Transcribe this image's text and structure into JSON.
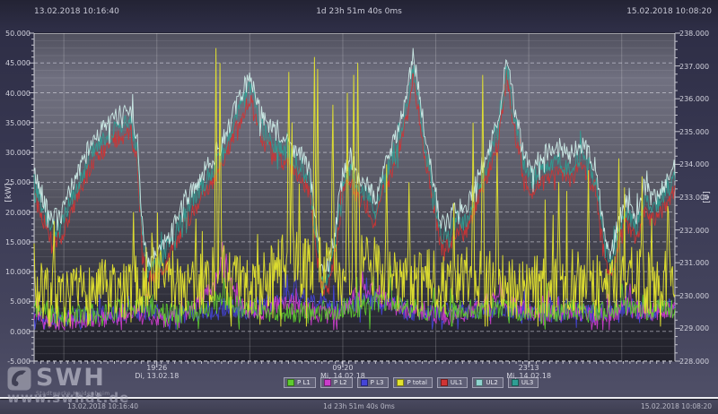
{
  "header": {
    "start_time": "13.02.2018 10:16:40",
    "duration": "1d 23h 51m 40s 0ms",
    "end_time": "15.02.2018 10:08:20"
  },
  "footer": {
    "start_time": "13.02.2018 10:16:40",
    "duration": "1d 23h 51m 40s 0ms",
    "end_time": "15.02.2018 10:08:20"
  },
  "branding": {
    "logo_text": "SWH",
    "logo_subtitle": "Stadtwerke Heidenheim",
    "watermark": "www.swhdt.de"
  },
  "chart_data": {
    "type": "line",
    "title": "",
    "x_range": [
      "13.02.2018 10:16:40",
      "15.02.2018 10:08:20"
    ],
    "duration_hours": 47.861,
    "grid": true,
    "legend_position": "bottom",
    "axes": {
      "left": {
        "label": "[kW]",
        "min": -5,
        "max": 50,
        "major_step": 5,
        "tick_step": 1,
        "minor_grid_step": 1.25
      },
      "right": {
        "label": "[V]",
        "min": 228,
        "max": 238,
        "major_step": 1,
        "tick_step": 0.25
      }
    },
    "x_gridlines_hours": [
      2.222,
      9.167,
      16.111,
      23.056,
      30.0,
      36.944,
      43.889
    ],
    "x_labels": [
      {
        "t": 9.167,
        "time": "19:26",
        "date": "Di, 13.02.18"
      },
      {
        "t": 23.056,
        "time": "09:20",
        "date": "Mi, 14.02.18"
      },
      {
        "t": 36.944,
        "time": "23:13",
        "date": "Mi, 14.02.18"
      }
    ],
    "shared_envelopes": {
      "voltage_band": [
        [
          0,
          233.4
        ],
        [
          0.7,
          232.6
        ],
        [
          1.2,
          232.1
        ],
        [
          2,
          232.0
        ],
        [
          2.6,
          232.8
        ],
        [
          3.5,
          233.6
        ],
        [
          4.5,
          234.5
        ],
        [
          5.5,
          234.9
        ],
        [
          6.5,
          235.2
        ],
        [
          7.2,
          235.4
        ],
        [
          7.7,
          234.4
        ],
        [
          8.1,
          231.8
        ],
        [
          8.5,
          230.5
        ],
        [
          9,
          230.9
        ],
        [
          10,
          231.4
        ],
        [
          11,
          232.3
        ],
        [
          12,
          233.0
        ],
        [
          13,
          233.6
        ],
        [
          14,
          234.3
        ],
        [
          15,
          235.3
        ],
        [
          15.8,
          236.1
        ],
        [
          16.2,
          236.3
        ],
        [
          17,
          235.1
        ],
        [
          18,
          234.6
        ],
        [
          19,
          234.3
        ],
        [
          20,
          233.9
        ],
        [
          20.6,
          233.4
        ],
        [
          21.1,
          231.6
        ],
        [
          21.6,
          230.4
        ],
        [
          22.1,
          230.7
        ],
        [
          22.6,
          232.0
        ],
        [
          23.1,
          233.5
        ],
        [
          23.6,
          233.9
        ],
        [
          24.2,
          233.3
        ],
        [
          25,
          233.0
        ],
        [
          25.5,
          232.5
        ],
        [
          26,
          233.5
        ],
        [
          26.7,
          234.1
        ],
        [
          27.3,
          234.9
        ],
        [
          27.9,
          235.9
        ],
        [
          28.3,
          237.0
        ],
        [
          28.7,
          236.0
        ],
        [
          29.2,
          234.5
        ],
        [
          29.8,
          233.2
        ],
        [
          30.4,
          231.8
        ],
        [
          31,
          231.9
        ],
        [
          31.6,
          232.4
        ],
        [
          32.2,
          232.2
        ],
        [
          33,
          233.1
        ],
        [
          34,
          234.2
        ],
        [
          34.7,
          235.0
        ],
        [
          35.3,
          237.0
        ],
        [
          35.9,
          235.3
        ],
        [
          36.5,
          234.1
        ],
        [
          37.1,
          233.5
        ],
        [
          38,
          233.9
        ],
        [
          39,
          234.2
        ],
        [
          40,
          233.9
        ],
        [
          41,
          234.3
        ],
        [
          42,
          233.5
        ],
        [
          42.6,
          231.5
        ],
        [
          43.1,
          230.9
        ],
        [
          43.6,
          231.9
        ],
        [
          44.2,
          232.5
        ],
        [
          45,
          232.1
        ],
        [
          45.6,
          233.0
        ],
        [
          46.2,
          232.6
        ],
        [
          47,
          233.0
        ],
        [
          47.86,
          233.6
        ]
      ]
    },
    "series": [
      {
        "name": "P L1",
        "color": "#5ecb2f",
        "axis": "kW",
        "z": 3,
        "seed": 11,
        "noise": 1.8,
        "burst": 2.2,
        "clip": [
          0.3,
          49
        ],
        "envelope": [
          [
            0,
            4
          ],
          [
            2,
            2.8
          ],
          [
            4,
            3
          ],
          [
            6,
            3.5
          ],
          [
            8,
            4.5
          ],
          [
            10,
            3
          ],
          [
            12,
            3.5
          ],
          [
            14,
            5
          ],
          [
            16,
            4
          ],
          [
            18,
            3.2
          ],
          [
            20,
            3
          ],
          [
            22,
            3.5
          ],
          [
            24,
            4
          ],
          [
            26,
            5
          ],
          [
            28,
            4
          ],
          [
            30,
            3.2
          ],
          [
            32,
            3.5
          ],
          [
            34,
            4
          ],
          [
            36,
            3.5
          ],
          [
            38,
            3
          ],
          [
            40,
            3.5
          ],
          [
            42,
            3
          ],
          [
            44,
            4.5
          ],
          [
            46,
            3.5
          ],
          [
            47.86,
            4
          ]
        ],
        "spikes": [
          [
            14.2,
            9
          ],
          [
            26.6,
            11
          ],
          [
            43.9,
            8
          ]
        ]
      },
      {
        "name": "P L2",
        "color": "#cb3ccb",
        "axis": "kW",
        "z": 2,
        "seed": 12,
        "noise": 1.6,
        "burst": 2.2,
        "clip": [
          0.2,
          49
        ],
        "envelope": [
          [
            0,
            2.6
          ],
          [
            2,
            1.6
          ],
          [
            4,
            2
          ],
          [
            6,
            2.4
          ],
          [
            8,
            3
          ],
          [
            10,
            2
          ],
          [
            12,
            4
          ],
          [
            13.5,
            8
          ],
          [
            14,
            10
          ],
          [
            14.6,
            8
          ],
          [
            15.2,
            5
          ],
          [
            16,
            4
          ],
          [
            17,
            3.2
          ],
          [
            18,
            4.5
          ],
          [
            19,
            5
          ],
          [
            20,
            4
          ],
          [
            21,
            3.2
          ],
          [
            22,
            2.6
          ],
          [
            23,
            3.2
          ],
          [
            24,
            6
          ],
          [
            25,
            7
          ],
          [
            26,
            6
          ],
          [
            27,
            4
          ],
          [
            28,
            3.2
          ],
          [
            29,
            3.5
          ],
          [
            30,
            3
          ],
          [
            31,
            2.6
          ],
          [
            32,
            3
          ],
          [
            33,
            4
          ],
          [
            34,
            5
          ],
          [
            35,
            5.5
          ],
          [
            36,
            4
          ],
          [
            37,
            3.2
          ],
          [
            38,
            2.6
          ],
          [
            39,
            3
          ],
          [
            40,
            3.5
          ],
          [
            41,
            3
          ],
          [
            42,
            2.6
          ],
          [
            43,
            3
          ],
          [
            44,
            4
          ],
          [
            45,
            3.6
          ],
          [
            46,
            3.2
          ],
          [
            47,
            3.6
          ],
          [
            47.86,
            4
          ]
        ],
        "spikes": [
          [
            14.05,
            15
          ],
          [
            14.35,
            13
          ],
          [
            24.5,
            10
          ],
          [
            34.8,
            9
          ],
          [
            44.5,
            8
          ]
        ]
      },
      {
        "name": "P L3",
        "color": "#4545d8",
        "axis": "kW",
        "z": 1,
        "seed": 13,
        "noise": 1.7,
        "burst": 2.2,
        "clip": [
          0.3,
          49
        ],
        "envelope": [
          [
            0,
            3
          ],
          [
            2,
            2
          ],
          [
            4,
            2.5
          ],
          [
            6,
            3
          ],
          [
            8,
            3.5
          ],
          [
            10,
            2.5
          ],
          [
            12,
            3
          ],
          [
            14,
            4
          ],
          [
            16,
            3.5
          ],
          [
            18,
            5
          ],
          [
            19,
            6
          ],
          [
            20,
            5.5
          ],
          [
            21,
            5
          ],
          [
            22,
            4
          ],
          [
            23,
            4.5
          ],
          [
            24,
            5
          ],
          [
            25,
            5.5
          ],
          [
            26,
            5
          ],
          [
            27,
            4
          ],
          [
            28,
            3.5
          ],
          [
            30,
            3
          ],
          [
            32,
            3.5
          ],
          [
            34,
            4
          ],
          [
            36,
            3.5
          ],
          [
            38,
            3
          ],
          [
            40,
            3.5
          ],
          [
            42,
            3
          ],
          [
            44,
            4
          ],
          [
            46,
            3.5
          ],
          [
            47.86,
            4
          ]
        ],
        "spikes": [
          [
            19.5,
            10
          ],
          [
            24.8,
            9
          ],
          [
            44.2,
            8
          ]
        ]
      },
      {
        "name": "P total",
        "color": "#e3e32e",
        "axis": "kW",
        "z": 7,
        "seed": 7,
        "noise": 5.5,
        "burst": 2.5,
        "clip": [
          0.8,
          49
        ],
        "envelope": [
          [
            0,
            7
          ],
          [
            1,
            5.5
          ],
          [
            2,
            4.5
          ],
          [
            3,
            5
          ],
          [
            4,
            6.5
          ],
          [
            5,
            7
          ],
          [
            6,
            6
          ],
          [
            7,
            6.5
          ],
          [
            8,
            8
          ],
          [
            9,
            10
          ],
          [
            10,
            9
          ],
          [
            11,
            8
          ],
          [
            12,
            7.5
          ],
          [
            13,
            9
          ],
          [
            14,
            10
          ],
          [
            15,
            8
          ],
          [
            16,
            7
          ],
          [
            17,
            8
          ],
          [
            18,
            10
          ],
          [
            19,
            12
          ],
          [
            20,
            11
          ],
          [
            21,
            12
          ],
          [
            22,
            10
          ],
          [
            23,
            9.5
          ],
          [
            24,
            10.5
          ],
          [
            25,
            11
          ],
          [
            26,
            10
          ],
          [
            27,
            8.5
          ],
          [
            28,
            7.5
          ],
          [
            29,
            8
          ],
          [
            30,
            9
          ],
          [
            31,
            8
          ],
          [
            32,
            8.5
          ],
          [
            33,
            9.5
          ],
          [
            34,
            9
          ],
          [
            35,
            8
          ],
          [
            36,
            7.5
          ],
          [
            37,
            7
          ],
          [
            38,
            7.5
          ],
          [
            39,
            8
          ],
          [
            40,
            8.5
          ],
          [
            41,
            8
          ],
          [
            42,
            7.5
          ],
          [
            43,
            8
          ],
          [
            44,
            9.5
          ],
          [
            45,
            8.5
          ],
          [
            46,
            8
          ],
          [
            47,
            9
          ],
          [
            47.86,
            10
          ]
        ],
        "spikes": [
          [
            1.5,
            18.5
          ],
          [
            7.4,
            20
          ],
          [
            13.6,
            47.5
          ],
          [
            13.85,
            45
          ],
          [
            19.0,
            43.5
          ],
          [
            19.25,
            35
          ],
          [
            20.95,
            46
          ],
          [
            21.2,
            44
          ],
          [
            22.3,
            38
          ],
          [
            23.4,
            40
          ],
          [
            23.85,
            43
          ],
          [
            24.15,
            45
          ],
          [
            26.3,
            28
          ],
          [
            28.0,
            25
          ],
          [
            32.8,
            35
          ],
          [
            33.5,
            43
          ],
          [
            34.6,
            30
          ],
          [
            39.2,
            25
          ],
          [
            41.4,
            27
          ],
          [
            43.7,
            29
          ],
          [
            45.4,
            26
          ],
          [
            47.3,
            21
          ]
        ]
      },
      {
        "name": "UL1",
        "color": "#d03434",
        "axis": "V",
        "z": 4,
        "seed": 41,
        "noise": 0.28,
        "burst": 2.0,
        "clip": [
          228.3,
          237.6
        ],
        "envelope_ref": "voltage_band",
        "offset": -0.35,
        "spikes": []
      },
      {
        "name": "UL2",
        "color": "#cfeee9",
        "swatch": "#8fd3cf",
        "axis": "V",
        "z": 6,
        "seed": 42,
        "noise": 0.3,
        "burst": 2.0,
        "clip": [
          228.3,
          237.7
        ],
        "envelope_ref": "voltage_band",
        "offset": 0.35,
        "spikes": []
      },
      {
        "name": "UL3",
        "color": "#2f9e94",
        "axis": "V",
        "z": 5,
        "seed": 43,
        "noise": 0.3,
        "burst": 2.0,
        "clip": [
          228.3,
          237.6
        ],
        "envelope_ref": "voltage_band",
        "offset": 0,
        "spikes": []
      }
    ]
  }
}
